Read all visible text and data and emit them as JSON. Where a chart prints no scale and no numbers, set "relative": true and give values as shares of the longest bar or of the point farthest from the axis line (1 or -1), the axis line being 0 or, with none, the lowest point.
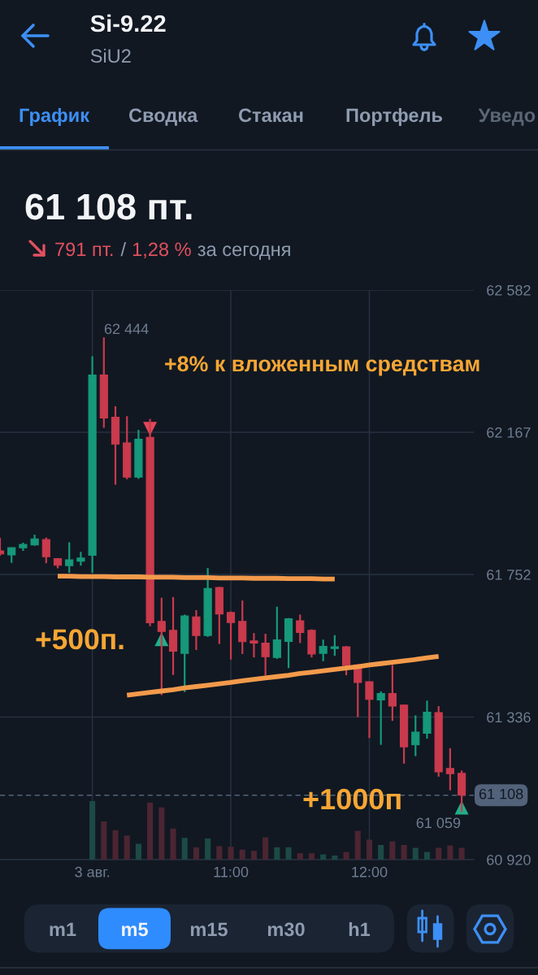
{
  "chart_data": [
    {
      "type": "candlestick",
      "title": "Si-9.22",
      "subtitle": "SiU2",
      "categories": [
        null,
        null,
        null,
        null,
        null,
        null,
        null,
        null,
        "3 авг.",
        null,
        null,
        null,
        null,
        null,
        null,
        null,
        null,
        null,
        null,
        null,
        "11:00",
        null,
        null,
        null,
        null,
        null,
        null,
        null,
        null,
        null,
        null,
        null,
        "12:00",
        null,
        null,
        null,
        null,
        null,
        null,
        null,
        null
      ],
      "ohlc": [
        [
          61821,
          61859,
          61807,
          61812
        ],
        [
          61809,
          61831,
          61786,
          61830
        ],
        [
          61830,
          61845,
          61821,
          61840
        ],
        [
          61838,
          61868,
          61836,
          61856
        ],
        [
          61854,
          61860,
          61785,
          61804
        ],
        [
          61798,
          61800,
          61770,
          61779
        ],
        [
          61778,
          61846,
          61757,
          61795
        ],
        [
          61791,
          61818,
          61778,
          61800
        ],
        [
          61808,
          62389,
          61757,
          62334
        ],
        [
          62334,
          62444,
          62180,
          62209
        ],
        [
          62211,
          62243,
          62014,
          62132
        ],
        [
          62136,
          62214,
          62030,
          62036
        ],
        [
          62036,
          62174,
          62031,
          62147
        ],
        [
          62152,
          62206,
          61601,
          61611
        ],
        [
          61615,
          61684,
          61400,
          61586
        ],
        [
          61589,
          61686,
          61459,
          61528
        ],
        [
          61522,
          61635,
          61409,
          61631
        ],
        [
          61628,
          61648,
          61532,
          61574
        ],
        [
          61574,
          61771,
          61570,
          61711
        ],
        [
          61714,
          61716,
          61549,
          61637
        ],
        [
          61641,
          61644,
          61504,
          61612
        ],
        [
          61615,
          61676,
          61520,
          61556
        ],
        [
          61558,
          61581,
          61510,
          61552
        ],
        [
          61552,
          61579,
          61457,
          61512
        ],
        [
          61510,
          61658,
          61506,
          61561
        ],
        [
          61557,
          61625,
          61479,
          61623
        ],
        [
          61617,
          61635,
          61552,
          61583
        ],
        [
          61589,
          61592,
          61510,
          61520
        ],
        [
          61522,
          61562,
          61499,
          61542
        ],
        [
          61536,
          61575,
          61515,
          61541
        ],
        [
          61541,
          61543,
          61458,
          61487
        ],
        [
          61488,
          61491,
          61336,
          61437
        ],
        [
          61439,
          61440,
          61275,
          61388
        ],
        [
          61386,
          61411,
          61255,
          61405
        ],
        [
          61405,
          61488,
          61325,
          61368
        ],
        [
          61371,
          61372,
          61200,
          61249
        ],
        [
          61255,
          61341,
          61222,
          61292
        ],
        [
          61289,
          61384,
          61273,
          61350
        ],
        [
          61349,
          61368,
          61162,
          61176
        ],
        [
          61186,
          61245,
          61122,
          61171
        ],
        [
          61172,
          61180,
          61059,
          61108
        ]
      ],
      "colors": [
        "#c93a4c",
        "#16987a",
        "#16987a",
        "#16987a",
        "#c93a4c",
        "#c93a4c",
        "#16987a",
        "#16987a",
        "#16987a",
        "#c93a4c",
        "#c93a4c",
        "#c93a4c",
        "#16987a",
        "#c93a4c",
        "#c93a4c",
        "#c93a4c",
        "#16987a",
        "#c93a4c",
        "#16987a",
        "#c93a4c",
        "#c93a4c",
        "#c93a4c",
        "#c93a4c",
        "#c93a4c",
        "#16987a",
        "#16987a",
        "#c93a4c",
        "#c93a4c",
        "#16987a",
        "#16987a",
        "#c93a4c",
        "#c93a4c",
        "#c93a4c",
        "#16987a",
        "#c93a4c",
        "#c93a4c",
        "#16987a",
        "#16987a",
        "#c93a4c",
        "#c93a4c",
        "#c93a4c"
      ],
      "series": [
        {
          "type": "scatter",
          "color": "#e2475b",
          "marker": "triangle",
          "values": [
            null,
            null,
            null,
            null,
            null,
            null,
            null,
            null,
            null,
            null,
            null,
            null,
            null,
            62177,
            null,
            null,
            null,
            null,
            null,
            null,
            null,
            null,
            null,
            null,
            null,
            null,
            null,
            null,
            null,
            null,
            null,
            null,
            null,
            null,
            null,
            null,
            null,
            null,
            null,
            null,
            null
          ]
        },
        {
          "type": "scatter",
          "color": "#1fb08a",
          "marker": "triangle",
          "values": [
            null,
            null,
            null,
            null,
            null,
            null,
            null,
            null,
            null,
            null,
            null,
            null,
            null,
            null,
            61563,
            null,
            null,
            null,
            null,
            null,
            null,
            null,
            null,
            null,
            null,
            null,
            null,
            null,
            null,
            null,
            null,
            null,
            null,
            null,
            null,
            null,
            null,
            null,
            null,
            null,
            61072
          ]
        },
        {
          "type": "line",
          "color": "#f39a4b",
          "values": [
            null,
            null,
            null,
            null,
            null,
            61747,
            61747,
            61746,
            61746,
            61746,
            61745,
            61745,
            61745,
            61744,
            61744,
            61744,
            61743,
            61743,
            61743,
            61742,
            61742,
            61742,
            61741,
            61741,
            61741,
            61740,
            61740,
            61740,
            61739,
            61739,
            null,
            null,
            null,
            null,
            null,
            null,
            null,
            null,
            null,
            null,
            null
          ]
        },
        {
          "type": "line",
          "color": "#f39a4b",
          "values": [
            null,
            null,
            null,
            null,
            null,
            null,
            null,
            null,
            null,
            null,
            null,
            61400,
            61404,
            61408,
            61412,
            61416,
            61421,
            61425,
            61429,
            61433,
            61437,
            61442,
            61446,
            61450,
            61454,
            61458,
            61463,
            61467,
            61471,
            61475,
            61479,
            61483,
            61488,
            61492,
            61496,
            61500,
            61504,
            61509,
            61513,
            null,
            null
          ]
        }
      ],
      "ylim": [
        60920,
        62582
      ],
      "yticks": [
        {
          "value": 62582,
          "label": "62 582"
        },
        {
          "value": 62167,
          "label": "62 167"
        },
        {
          "value": 61752,
          "label": "61 752"
        },
        {
          "value": 61336,
          "label": "61 336"
        },
        {
          "value": 60920,
          "label": "60 920"
        }
      ],
      "grid": true,
      "ref_lines": [
        {
          "axis": "y",
          "value": 61108,
          "label": "61 108",
          "color": "#52627a",
          "line_style": "dashed"
        }
      ],
      "annotations": [
        "График",
        "Сводка",
        "Стакан",
        "Портфель",
        "Уведо",
        "61 108 пт.",
        "791 пт.",
        "/",
        "1,28 %",
        "за сегодня",
        "62 444",
        "+8% к вложенным средствам",
        "+500п.",
        "+1000п",
        "61 059",
        "m1",
        "m5",
        "m15",
        "m30",
        "h1"
      ]
    },
    {
      "type": "bar",
      "relative": true,
      "categories": [
        null,
        null,
        null,
        null,
        null,
        null,
        null,
        null,
        null,
        null,
        null,
        null,
        null,
        null,
        null,
        null,
        null,
        null,
        null,
        null,
        null,
        null,
        null,
        null,
        null,
        null,
        null,
        null,
        null,
        null,
        null,
        null,
        null,
        null,
        null,
        null,
        null,
        null,
        null,
        null,
        null
      ],
      "values": [
        null,
        null,
        null,
        null,
        null,
        null,
        null,
        null,
        1,
        0.65,
        0.5,
        0.41,
        0.27,
        0.97,
        0.89,
        0.53,
        0.37,
        0.21,
        0.36,
        0.23,
        0.22,
        0.17,
        0.15,
        0.38,
        0.21,
        0.21,
        0.11,
        0.11,
        0.09,
        0.07,
        0.13,
        0.49,
        0.34,
        0.25,
        0.31,
        0.25,
        0.2,
        0.13,
        0.2,
        0.24,
        0.2
      ],
      "colors": [
        "#4b2532",
        "#1c4a45",
        "#1c4a45",
        "#1c4a45",
        "#4b2532",
        "#4b2532",
        "#1c4a45",
        "#1c4a45",
        "#1c4a45",
        "#4b2532",
        "#4b2532",
        "#4b2532",
        "#1c4a45",
        "#4b2532",
        "#4b2532",
        "#4b2532",
        "#1c4a45",
        "#4b2532",
        "#1c4a45",
        "#4b2532",
        "#4b2532",
        "#4b2532",
        "#4b2532",
        "#4b2532",
        "#1c4a45",
        "#1c4a45",
        "#4b2532",
        "#4b2532",
        "#1c4a45",
        "#1c4a45",
        "#4b2532",
        "#4b2532",
        "#4b2532",
        "#1c4a45",
        "#4b2532",
        "#4b2532",
        "#1c4a45",
        "#1c4a45",
        "#4b2532",
        "#4b2532",
        "#4b2532"
      ]
    }
  ]
}
